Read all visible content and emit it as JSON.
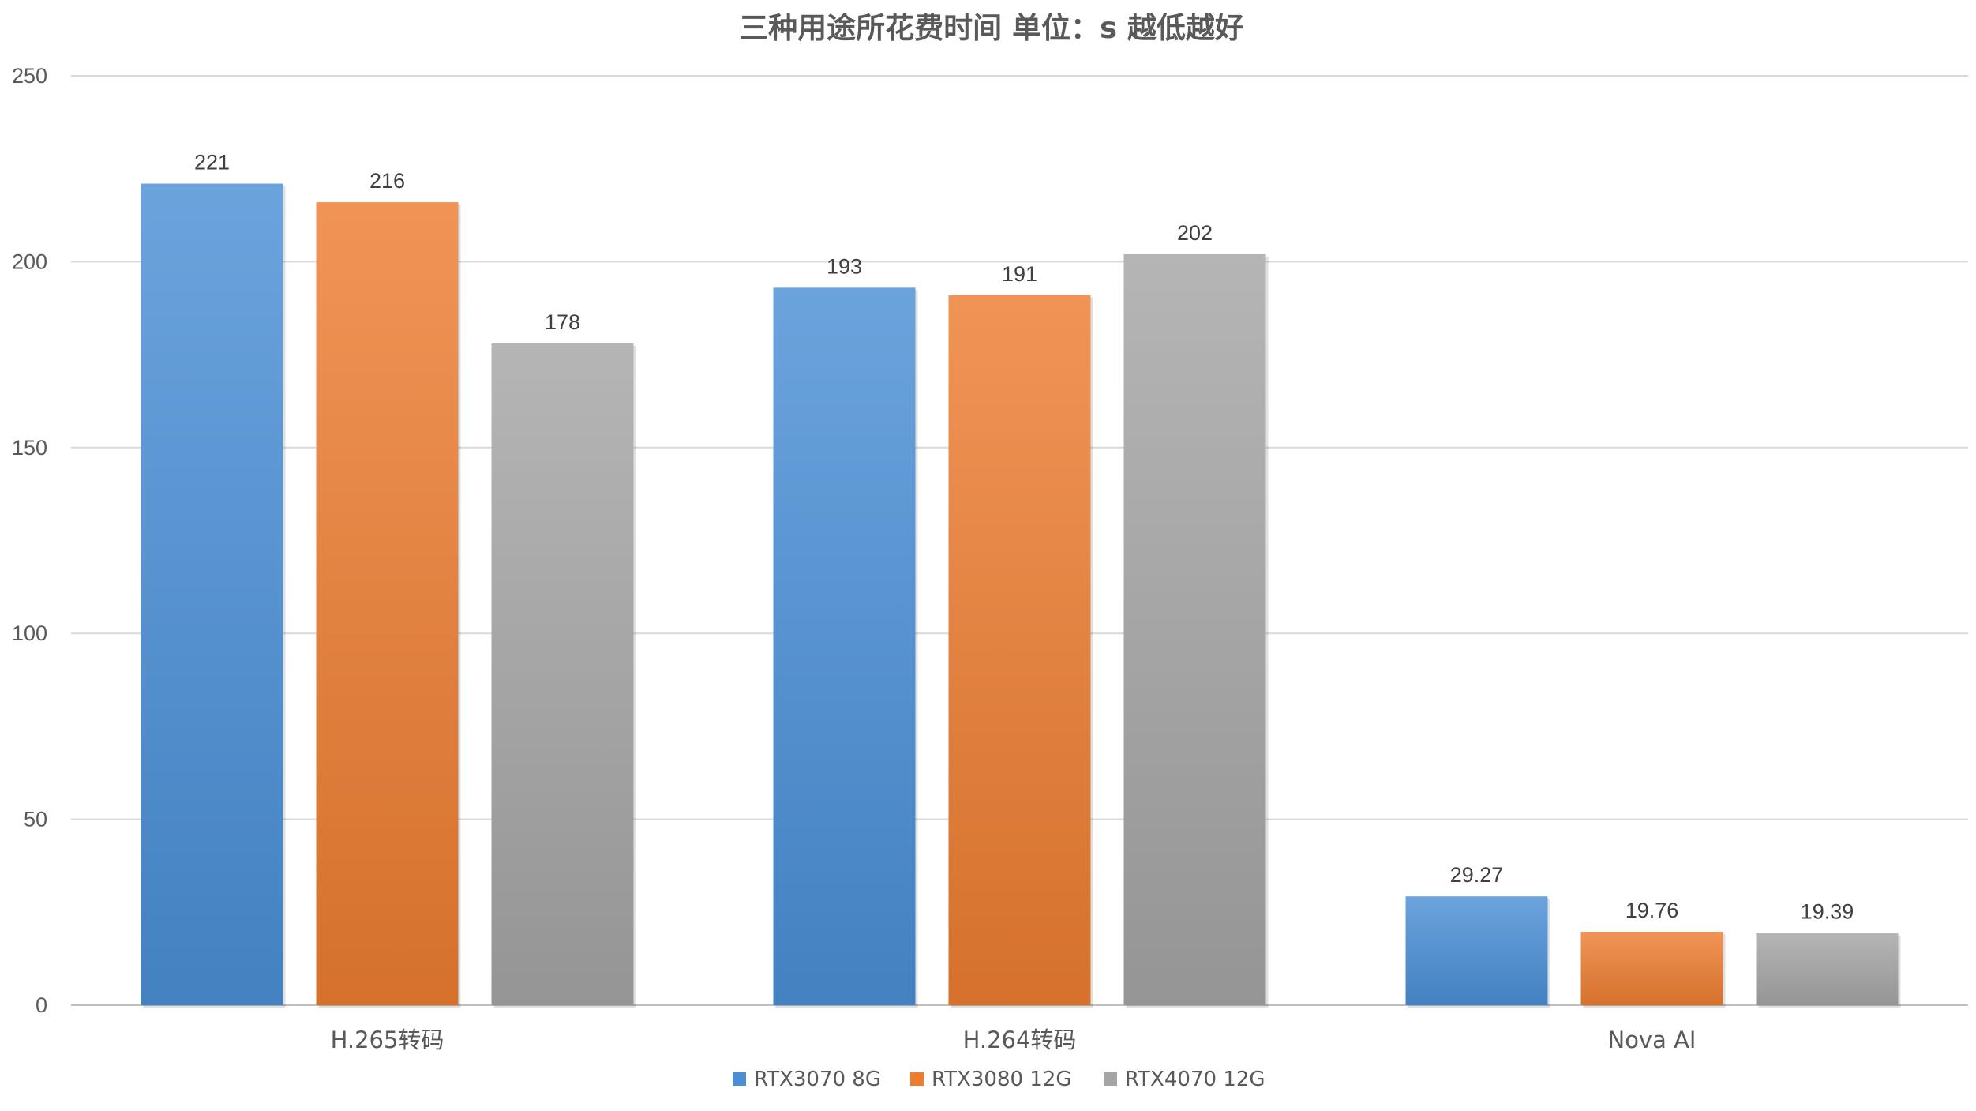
{
  "chart_data": {
    "type": "bar",
    "title": "三种用途所花费时间 单位：s  越低越好",
    "categories": [
      "H.265转码",
      "H.264转码",
      "Nova AI"
    ],
    "series": [
      {
        "name": "RTX3070 8G",
        "color": "#4a8fd6",
        "values": [
          221,
          193,
          29.27
        ]
      },
      {
        "name": "RTX3080 12G",
        "color": "#ed7d31",
        "values": [
          216,
          191,
          19.76
        ]
      },
      {
        "name": "RTX4070 12G",
        "color": "#a5a5a5",
        "values": [
          178,
          202,
          19.39
        ]
      }
    ],
    "data_labels": [
      [
        "221",
        "193",
        "29.27"
      ],
      [
        "216",
        "191",
        "19.76"
      ],
      [
        "178",
        "202",
        "19.39"
      ]
    ],
    "yticks": [
      "0",
      "50",
      "100",
      "150",
      "200",
      "250"
    ],
    "ylim": [
      0,
      250
    ],
    "grid": true,
    "legend": "bottom"
  }
}
